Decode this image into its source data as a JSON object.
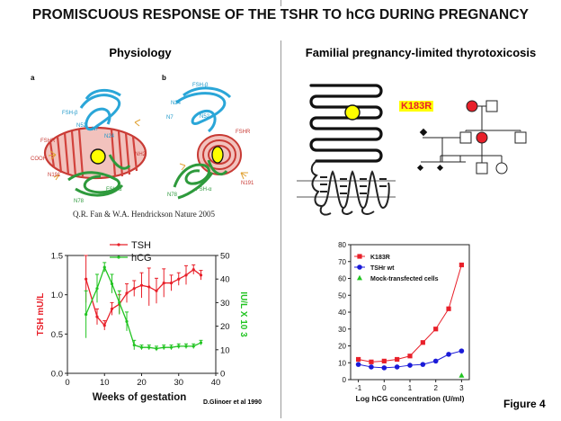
{
  "title": "PROMISCUOUS RESPONSE OF THE TSHR TO hCG DURING PREGNANCY",
  "left_panel": {
    "heading": "Physiology",
    "structure_a": {
      "letter": "a",
      "labels": [
        "FSH-β",
        "N52",
        "N7",
        "N24",
        "FSHR",
        "COOH",
        "NH2",
        "N191",
        "N78",
        "FSH-α"
      ]
    },
    "structure_b": {
      "letter": "b",
      "labels": [
        "FSH-β",
        "N24",
        "N7",
        "N52",
        "FSHR",
        "N191",
        "N78",
        "FSH-α"
      ]
    },
    "citation": "Q.R. Fan & W.A. Hendrickson Nature 2005",
    "credit": "D.Glinoer et al 1990"
  },
  "right_panel": {
    "heading": "Familial pregnancy-limited thyrotoxicosis",
    "mutation_label": "K183R"
  },
  "figure_label": "Figure 4",
  "colors": {
    "tsh": "#e8202a",
    "hcg": "#22c422",
    "k183r": "#e8202a",
    "wt": "#1a1ad8",
    "mock": "#22c422",
    "highlight": "#ffff00",
    "divider": "#9a9a9a"
  },
  "chart_data": [
    {
      "type": "line",
      "xlabel": "Weeks of gestation",
      "ylabel": "TSH mU/L",
      "y2label": "IU/L X 10 3",
      "xlim": [
        0,
        40
      ],
      "ylim": [
        0,
        1.5
      ],
      "y2lim": [
        0,
        50
      ],
      "xticks": [
        "0",
        "10",
        "20",
        "30",
        "40"
      ],
      "yticks": [
        "0.0",
        "0.5",
        "1.0",
        "1.5"
      ],
      "y2ticks": [
        "0",
        "10",
        "20",
        "30",
        "40",
        "50"
      ],
      "legend_position": "top-center",
      "series": [
        {
          "name": "TSH",
          "axis": "left",
          "color": "#e8202a",
          "x": [
            5,
            8,
            10,
            12,
            14,
            16,
            18,
            20,
            22,
            24,
            26,
            28,
            30,
            32,
            34,
            36
          ],
          "y": [
            1.2,
            0.72,
            0.61,
            0.82,
            0.88,
            1.02,
            1.08,
            1.12,
            1.1,
            1.05,
            1.15,
            1.15,
            1.2,
            1.25,
            1.32,
            1.25
          ],
          "err": [
            0.3,
            0.1,
            0.06,
            0.08,
            0.12,
            0.12,
            0.1,
            0.16,
            0.24,
            0.16,
            0.18,
            0.1,
            0.08,
            0.12,
            0.06,
            0.06
          ]
        },
        {
          "name": "hCG",
          "axis": "right",
          "color": "#22c422",
          "x": [
            5,
            8,
            10,
            12,
            14,
            16,
            18,
            20,
            22,
            24,
            26,
            28,
            30,
            32,
            34,
            36
          ],
          "y": [
            25,
            36,
            45,
            38,
            30,
            22,
            12,
            11,
            11,
            10.5,
            11,
            11,
            11.5,
            11.5,
            11.5,
            13
          ],
          "err": [
            10,
            6,
            2,
            4,
            5,
            4,
            2,
            1,
            1,
            1,
            1,
            1,
            1,
            1,
            1,
            1
          ]
        }
      ]
    },
    {
      "type": "line",
      "xlabel": "Log hCG concentration (U/ml)",
      "ylabel": "",
      "xlim": [
        -1.3,
        3.3
      ],
      "ylim": [
        0,
        80
      ],
      "xticks": [
        "-1",
        "0",
        "1",
        "2",
        "3"
      ],
      "yticks": [
        "0",
        "10",
        "20",
        "30",
        "40",
        "50",
        "60",
        "70",
        "80"
      ],
      "legend_position": "top-left",
      "series": [
        {
          "name": "K183R",
          "color": "#e8202a",
          "marker": "square",
          "x": [
            -1,
            -0.5,
            0,
            0.5,
            1,
            1.5,
            2,
            2.5,
            3
          ],
          "y": [
            12,
            10.5,
            11,
            12,
            14,
            22,
            30,
            42,
            68
          ]
        },
        {
          "name": "TSHr wt",
          "color": "#1a1ad8",
          "marker": "circle",
          "x": [
            -1,
            -0.5,
            0,
            0.5,
            1,
            1.5,
            2,
            2.5,
            3
          ],
          "y": [
            9,
            7.5,
            7,
            7.5,
            8.5,
            9,
            11,
            15,
            17
          ]
        },
        {
          "name": "Mock-transfected cells",
          "color": "#22c422",
          "marker": "triangle",
          "x": [
            3
          ],
          "y": [
            2.5
          ]
        }
      ]
    }
  ]
}
